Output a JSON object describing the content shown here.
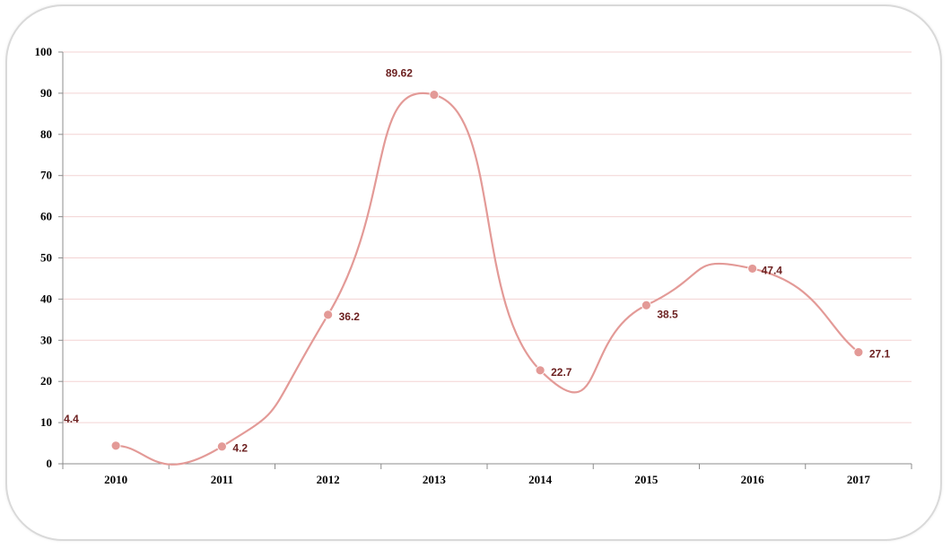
{
  "chart_data": {
    "type": "line",
    "title": "",
    "xlabel": "",
    "ylabel": "",
    "categories": [
      "2010",
      "2011",
      "2012",
      "2013",
      "2014",
      "2015",
      "2016",
      "2017"
    ],
    "series": [
      {
        "values": [
          4.4,
          4.2,
          36.2,
          89.62,
          22.7,
          38.5,
          47.4,
          27.1
        ],
        "labels": [
          "4.4",
          "4.2",
          "36.2",
          "89.62",
          "22.7",
          "38.5",
          "47.4",
          "27.1"
        ],
        "color": "#e39a97",
        "smooth": true
      }
    ],
    "ylim": [
      0,
      100
    ],
    "yticks": [
      "0",
      "10",
      "20",
      "30",
      "40",
      "50",
      "60",
      "70",
      "80",
      "90",
      "100"
    ],
    "grid": true,
    "grid_color": "#f3d3d3",
    "label_color": "#6b1f1f",
    "legend": "none"
  }
}
